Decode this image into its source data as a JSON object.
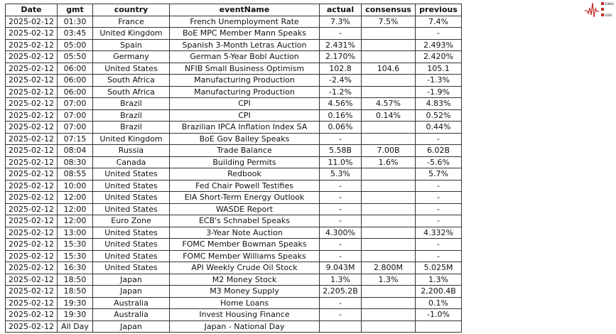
{
  "logo": {
    "text": "SIGNAL 2 NOISE",
    "color": "#c62828"
  },
  "table": {
    "headers": [
      "Date",
      "gmt",
      "country",
      "eventName",
      "actual",
      "consensus",
      "previous"
    ],
    "rows": [
      [
        "2025-02-12",
        "01:30",
        "France",
        "French Unemployment Rate",
        "7.3%",
        "7.5%",
        "7.4%"
      ],
      [
        "2025-02-12",
        "03:45",
        "United Kingdom",
        "BoE MPC Member Mann Speaks",
        "-",
        "",
        "-"
      ],
      [
        "2025-02-12",
        "05:00",
        "Spain",
        "Spanish 3-Month Letras Auction",
        "2.431%",
        "",
        "2.493%"
      ],
      [
        "2025-02-12",
        "05:50",
        "Germany",
        "German 5-Year Bobl Auction",
        "2.170%",
        "",
        "2.420%"
      ],
      [
        "2025-02-12",
        "06:00",
        "United States",
        "NFIB Small Business Optimism",
        "102.8",
        "104.6",
        "105.1"
      ],
      [
        "2025-02-12",
        "06:00",
        "South Africa",
        "Manufacturing Production",
        "-2.4%",
        "",
        "-1.3%"
      ],
      [
        "2025-02-12",
        "06:00",
        "South Africa",
        "Manufacturing Production",
        "-1.2%",
        "",
        "-1.9%"
      ],
      [
        "2025-02-12",
        "07:00",
        "Brazil",
        "CPI",
        "4.56%",
        "4.57%",
        "4.83%"
      ],
      [
        "2025-02-12",
        "07:00",
        "Brazil",
        "CPI",
        "0.16%",
        "0.14%",
        "0.52%"
      ],
      [
        "2025-02-12",
        "07:00",
        "Brazil",
        "Brazilian IPCA Inflation Index SA",
        "0.06%",
        "",
        "0.44%"
      ],
      [
        "2025-02-12",
        "07:15",
        "United Kingdom",
        "BoE Gov Bailey Speaks",
        "-",
        "",
        "-"
      ],
      [
        "2025-02-12",
        "08:04",
        "Russia",
        "Trade Balance",
        "5.58B",
        "7.00B",
        "6.02B"
      ],
      [
        "2025-02-12",
        "08:30",
        "Canada",
        "Building Permits",
        "11.0%",
        "1.6%",
        "-5.6%"
      ],
      [
        "2025-02-12",
        "08:55",
        "United States",
        "Redbook",
        "5.3%",
        "",
        "5.7%"
      ],
      [
        "2025-02-12",
        "10:00",
        "United States",
        "Fed Chair Powell Testifies",
        "-",
        "",
        "-"
      ],
      [
        "2025-02-12",
        "12:00",
        "United States",
        "EIA Short-Term Energy Outlook",
        "-",
        "",
        "-"
      ],
      [
        "2025-02-12",
        "12:00",
        "United States",
        "WASDE Report",
        "-",
        "",
        "-"
      ],
      [
        "2025-02-12",
        "12:00",
        "Euro Zone",
        "ECB's Schnabel Speaks",
        "-",
        "",
        "-"
      ],
      [
        "2025-02-12",
        "13:00",
        "United States",
        "3-Year Note Auction",
        "4.300%",
        "",
        "4.332%"
      ],
      [
        "2025-02-12",
        "15:30",
        "United States",
        "FOMC Member Bowman Speaks",
        "-",
        "",
        "-"
      ],
      [
        "2025-02-12",
        "15:30",
        "United States",
        "FOMC Member Williams Speaks",
        "-",
        "",
        "-"
      ],
      [
        "2025-02-12",
        "16:30",
        "United States",
        "API Weekly Crude Oil Stock",
        "9.043M",
        "2.800M",
        "5.025M"
      ],
      [
        "2025-02-12",
        "18:50",
        "Japan",
        "M2 Money Stock",
        "1.3%",
        "1.3%",
        "1.3%"
      ],
      [
        "2025-02-12",
        "18:50",
        "Japan",
        "M3 Money Supply",
        "2,205.2B",
        "",
        "2,200.4B"
      ],
      [
        "2025-02-12",
        "19:30",
        "Australia",
        "Home Loans",
        "-",
        "",
        "0.1%"
      ],
      [
        "2025-02-12",
        "19:30",
        "Australia",
        "Invest Housing Finance",
        "-",
        "",
        "-1.0%"
      ],
      [
        "2025-02-12",
        "All Day",
        "Japan",
        "Japan - National Day",
        "",
        "",
        ""
      ]
    ]
  }
}
